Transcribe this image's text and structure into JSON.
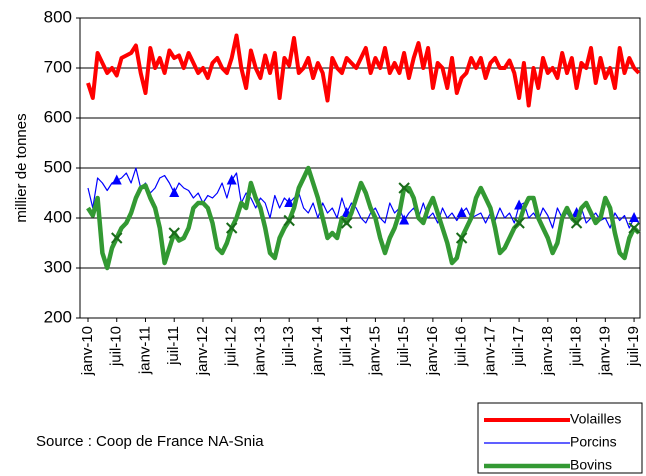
{
  "chart_data": {
    "type": "line",
    "y_label": "millier  de tonnes",
    "source": "Source : Coop de France NA-Snia",
    "categories": [
      "janv-10",
      null,
      null,
      null,
      null,
      null,
      "juil-10",
      null,
      null,
      null,
      null,
      null,
      "janv-11",
      null,
      null,
      null,
      null,
      null,
      "juil-11",
      null,
      null,
      null,
      null,
      null,
      "janv-12",
      null,
      null,
      null,
      null,
      null,
      "juil-12",
      null,
      null,
      null,
      null,
      null,
      "janv-13",
      null,
      null,
      null,
      null,
      null,
      "juil-13",
      null,
      null,
      null,
      null,
      null,
      "janv-14",
      null,
      null,
      null,
      null,
      null,
      "juil-14",
      null,
      null,
      null,
      null,
      null,
      "janv-15",
      null,
      null,
      null,
      null,
      null,
      "juil-15",
      null,
      null,
      null,
      null,
      null,
      "janv-16",
      null,
      null,
      null,
      null,
      null,
      "juil-16",
      null,
      null,
      null,
      null,
      null,
      "janv-17",
      null,
      null,
      null,
      null,
      null,
      "juil-17",
      null,
      null,
      null,
      null,
      null,
      "janv-18",
      null,
      null,
      null,
      null,
      null,
      "juil-18",
      null,
      null,
      null,
      null,
      null,
      "janv-19",
      null,
      null,
      null,
      null,
      null,
      "juil-19",
      null
    ],
    "series": [
      {
        "name": "Volailles",
        "color": "#ff0000",
        "values": [
          670,
          640,
          730,
          710,
          690,
          700,
          685,
          720,
          725,
          730,
          745,
          690,
          650,
          740,
          700,
          720,
          690,
          735,
          720,
          725,
          700,
          730,
          710,
          690,
          700,
          680,
          710,
          720,
          700,
          690,
          720,
          765,
          700,
          660,
          735,
          700,
          680,
          725,
          690,
          730,
          640,
          720,
          705,
          760,
          690,
          700,
          720,
          680,
          710,
          690,
          635,
          720,
          700,
          690,
          720,
          710,
          700,
          720,
          740,
          690,
          720,
          700,
          740,
          690,
          710,
          690,
          730,
          680,
          720,
          750,
          700,
          740,
          660,
          710,
          700,
          660,
          720,
          650,
          680,
          690,
          720,
          700,
          720,
          680,
          710,
          720,
          700,
          700,
          715,
          690,
          640,
          710,
          625,
          700,
          660,
          720,
          690,
          700,
          680,
          730,
          690,
          720,
          660,
          710,
          700,
          740,
          670,
          720,
          680,
          700,
          660,
          740,
          690,
          720,
          700,
          690
        ]
      },
      {
        "name": "Porcins",
        "color": "#0000ff",
        "values": [
          460,
          420,
          480,
          470,
          455,
          470,
          475,
          480,
          490,
          470,
          500,
          460,
          470,
          450,
          460,
          480,
          485,
          470,
          450,
          470,
          460,
          455,
          440,
          450,
          430,
          445,
          440,
          450,
          470,
          440,
          475,
          490,
          430,
          450,
          440,
          420,
          440,
          430,
          400,
          445,
          420,
          440,
          430,
          440,
          450,
          420,
          410,
          430,
          400,
          430,
          410,
          420,
          400,
          440,
          410,
          430,
          420,
          400,
          390,
          410,
          420,
          400,
          390,
          430,
          410,
          420,
          395,
          410,
          420,
          400,
          430,
          400,
          410,
          390,
          420,
          400,
          410,
          395,
          410,
          420,
          400,
          405,
          410,
          390,
          410,
          395,
          420,
          400,
          410,
          390,
          425,
          430,
          400,
          410,
          395,
          420,
          405,
          380,
          420,
          400,
          410,
          395,
          410,
          420,
          390,
          400,
          410,
          395,
          400,
          380,
          410,
          395,
          405,
          380,
          400,
          390
        ]
      },
      {
        "name": "Bovins",
        "color": "#339933",
        "values": [
          420,
          405,
          440,
          330,
          300,
          340,
          360,
          380,
          390,
          410,
          440,
          460,
          465,
          440,
          420,
          380,
          310,
          340,
          370,
          355,
          360,
          380,
          420,
          430,
          430,
          420,
          390,
          340,
          330,
          350,
          380,
          400,
          430,
          420,
          470,
          440,
          420,
          380,
          330,
          320,
          360,
          380,
          395,
          420,
          460,
          480,
          500,
          470,
          440,
          400,
          360,
          370,
          360,
          400,
          390,
          410,
          440,
          470,
          450,
          420,
          400,
          360,
          330,
          360,
          380,
          410,
          460,
          460,
          440,
          400,
          390,
          420,
          440,
          410,
          380,
          350,
          310,
          320,
          360,
          380,
          400,
          440,
          460,
          440,
          420,
          380,
          330,
          340,
          360,
          380,
          390,
          420,
          440,
          440,
          400,
          380,
          360,
          330,
          350,
          400,
          420,
          400,
          390,
          420,
          430,
          410,
          390,
          400,
          440,
          420,
          370,
          330,
          320,
          360,
          380,
          370
        ]
      }
    ],
    "ylim": [
      200,
      800
    ],
    "yticks": [
      200,
      300,
      400,
      500,
      600,
      700,
      800
    ],
    "grid": true,
    "legend": "lower right"
  }
}
